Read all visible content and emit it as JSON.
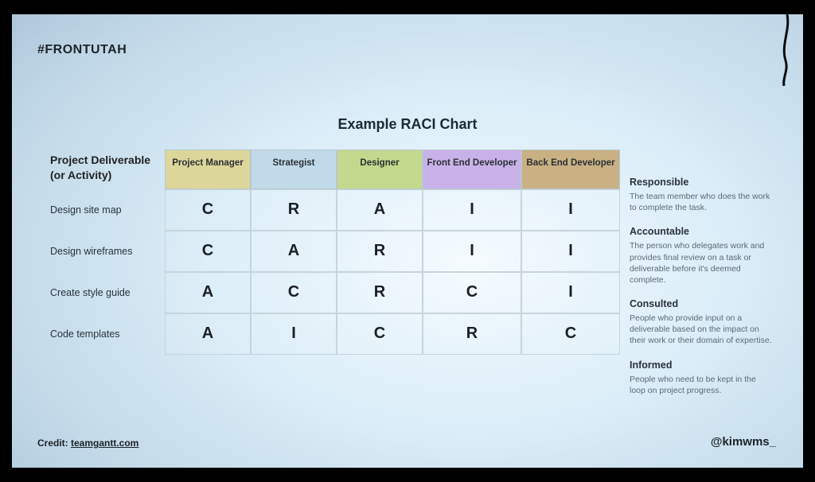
{
  "hashtag": "#FRONTUTAH",
  "title": "Example RACI Chart",
  "corner_label_line1": "Project Deliverable",
  "corner_label_line2": "(or Activity)",
  "credit_prefix": "Credit: ",
  "credit_link": "teamgantt.com",
  "handle": "@kimwms_",
  "roles": [
    {
      "label": "Project Manager",
      "bg": "#dcd69a"
    },
    {
      "label": "Strategist",
      "bg": "#c1dae9"
    },
    {
      "label": "Designer",
      "bg": "#c3d98d"
    },
    {
      "label": "Front End Developer",
      "bg": "#c9b2ea"
    },
    {
      "label": "Back End Developer",
      "bg": "#c9b184"
    }
  ],
  "rows": [
    {
      "label": "Design site map",
      "cells": [
        "C",
        "R",
        "A",
        "I",
        "I"
      ]
    },
    {
      "label": "Design wireframes",
      "cells": [
        "C",
        "A",
        "R",
        "I",
        "I"
      ]
    },
    {
      "label": "Create style guide",
      "cells": [
        "A",
        "C",
        "R",
        "C",
        "I"
      ]
    },
    {
      "label": "Code templates",
      "cells": [
        "A",
        "I",
        "C",
        "R",
        "C"
      ]
    }
  ],
  "legend": [
    {
      "title": "Responsible",
      "desc": "The team member who does the work to complete the task."
    },
    {
      "title": "Accountable",
      "desc": "The person who delegates work and provides final review on a task or deliverable before it's deemed complete."
    },
    {
      "title": "Consulted",
      "desc": "People who provide input on a deliverable based on the impact on their work or their domain of expertise."
    },
    {
      "title": "Informed",
      "desc": "People who need to be kept in the loop on project progress."
    }
  ],
  "style": {
    "cell_border": "#c6d4db",
    "header_border": "#b8c7cf",
    "text_color": "#1d2328",
    "cell_font_size": 20,
    "header_font_size": 11.5,
    "rowlabel_font_size": 12.5,
    "title_font_size": 18,
    "legend_title_size": 12.5,
    "legend_desc_size": 10.5
  }
}
